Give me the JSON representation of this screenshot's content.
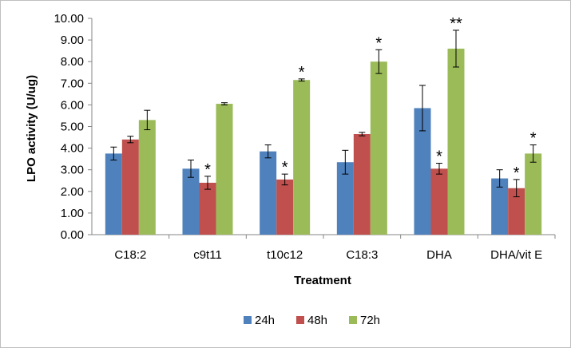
{
  "chart_data": {
    "type": "bar",
    "xlabel": "Treatment",
    "ylabel": "LPO activity (U/ug)",
    "ylim": [
      0,
      10
    ],
    "y_ticks": [
      "0.00",
      "1.00",
      "2.00",
      "3.00",
      "4.00",
      "5.00",
      "6.00",
      "7.00",
      "8.00",
      "9.00",
      "10.00"
    ],
    "grid": false,
    "legend_position": "bottom",
    "categories": [
      "C18:2",
      "c9t11",
      "t10c12",
      "C18:3",
      "DHA",
      "DHA/vit E"
    ],
    "series": [
      {
        "name": "24h",
        "color": "#4f81bd",
        "values": [
          3.75,
          3.05,
          3.85,
          3.35,
          5.85,
          2.6
        ],
        "error": [
          0.3,
          0.4,
          0.3,
          0.55,
          1.05,
          0.4
        ],
        "markers": [
          "",
          "",
          "",
          "",
          "",
          ""
        ]
      },
      {
        "name": "48h",
        "color": "#c0504d",
        "values": [
          4.4,
          2.4,
          2.55,
          4.65,
          3.05,
          2.15
        ],
        "error": [
          0.15,
          0.3,
          0.25,
          0.08,
          0.25,
          0.4
        ],
        "markers": [
          "",
          "*",
          "*",
          "",
          "*",
          "*"
        ]
      },
      {
        "name": "72h",
        "color": "#9bbb59",
        "values": [
          5.3,
          6.05,
          7.15,
          8.0,
          8.6,
          3.75
        ],
        "error": [
          0.45,
          0.05,
          0.05,
          0.55,
          0.85,
          0.4
        ],
        "markers": [
          "",
          "",
          "*",
          "*",
          "**",
          "*"
        ]
      }
    ]
  }
}
